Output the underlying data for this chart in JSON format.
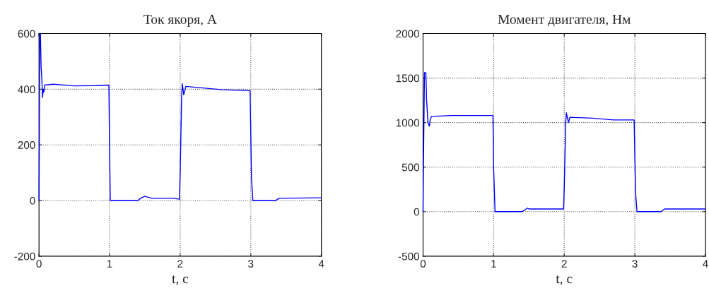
{
  "chart_data": [
    {
      "type": "line",
      "title": "Ток якоря, А",
      "xlabel": "t, c",
      "xlim": [
        0,
        4
      ],
      "xticks": [
        0,
        1,
        2,
        3,
        4
      ],
      "ylim": [
        -200,
        600
      ],
      "yticks": [
        -200,
        0,
        200,
        400,
        600
      ],
      "grid": true,
      "line_style": "solid",
      "series": [
        {
          "color": "#0000ff",
          "x": [
            0,
            0.005,
            0.01,
            0.02,
            0.03,
            0.04,
            0.05,
            0.06,
            0.07,
            0.08,
            0.2,
            0.5,
            0.8,
            0.99,
            1.0,
            1.01,
            1.4,
            1.45,
            1.5,
            1.6,
            1.9,
            1.99,
            2.0,
            2.02,
            2.03,
            2.05,
            2.08,
            2.3,
            2.6,
            2.99,
            3.01,
            3.03,
            3.35,
            3.4,
            4
          ],
          "values": [
            0,
            220,
            600,
            600,
            480,
            440,
            370,
            400,
            390,
            415,
            418,
            412,
            413,
            415,
            180,
            0,
            0,
            10,
            15,
            8,
            8,
            5,
            100,
            370,
            420,
            380,
            410,
            405,
            398,
            395,
            80,
            0,
            0,
            8,
            10
          ]
        }
      ]
    },
    {
      "type": "line",
      "title": "Момент двигателя, Нм",
      "xlabel": "t, c",
      "xlim": [
        0,
        4
      ],
      "xticks": [
        0,
        1,
        2,
        3,
        4
      ],
      "ylim": [
        -500,
        2000
      ],
      "yticks": [
        -500,
        0,
        500,
        1000,
        1500,
        2000
      ],
      "grid": true,
      "line_style": "solid",
      "series": [
        {
          "color": "#0000ff",
          "x": [
            0,
            0.005,
            0.02,
            0.04,
            0.05,
            0.07,
            0.09,
            0.1,
            0.12,
            0.4,
            0.99,
            1.0,
            1.02,
            1.4,
            1.48,
            1.5,
            1.99,
            2.0,
            2.02,
            2.03,
            2.06,
            2.08,
            2.4,
            2.7,
            2.99,
            3.01,
            3.03,
            3.37,
            3.42,
            4
          ],
          "values": [
            0,
            480,
            1560,
            1560,
            1250,
            1000,
            960,
            1030,
            1070,
            1080,
            1080,
            480,
            0,
            0,
            40,
            30,
            30,
            270,
            980,
            1110,
            1000,
            1060,
            1050,
            1030,
            1030,
            220,
            0,
            0,
            30,
            30
          ]
        }
      ]
    }
  ]
}
